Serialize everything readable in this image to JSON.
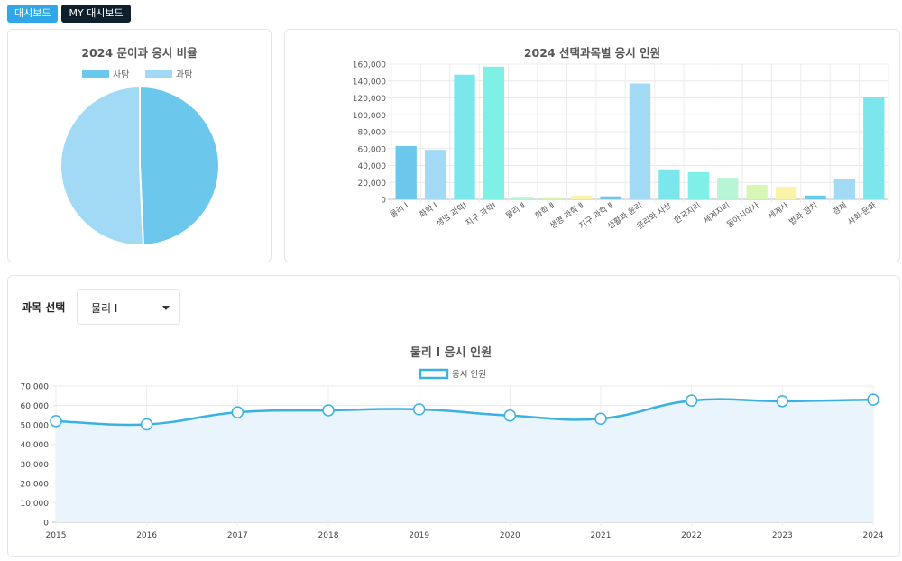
{
  "tabs": [
    {
      "label": "대시보드"
    },
    {
      "label": "MY 대시보드"
    }
  ],
  "colors": {
    "accent": "#2fa7e8",
    "line": "#3ab0e4",
    "line_fill": "#e9f4fc"
  },
  "selector": {
    "label": "과목 선택",
    "selected": "물리 I"
  },
  "chart_data": [
    {
      "type": "pie",
      "title": "2024 문이과 응시 비율",
      "legend": "top",
      "labels": [
        "사탐",
        "과탐"
      ],
      "values": [
        49.3,
        50.7
      ],
      "colors": [
        "#6cc7ec",
        "#a2d9f4"
      ]
    },
    {
      "type": "bar",
      "title": "2024 선택과목별 응시 인원",
      "categories": [
        "물리 Ⅰ",
        "화학 Ⅰ",
        "생명 과학Ⅰ",
        "지구 과학Ⅰ",
        "물리 Ⅱ",
        "화학 Ⅱ",
        "생명 과학 Ⅱ",
        "지구 과학 Ⅱ",
        "생활과 윤리",
        "윤리와 사상",
        "한국지리",
        "세계지리",
        "동아시아사",
        "세계사",
        "법과 정치",
        "경제",
        "사회·문화"
      ],
      "values": [
        63000,
        58500,
        147500,
        157000,
        3000,
        2500,
        4500,
        3500,
        137000,
        35500,
        32000,
        25500,
        17000,
        15000,
        4500,
        24000,
        121500
      ],
      "colors": [
        "#6cc7ec",
        "#a2d9f4",
        "#7be6ec",
        "#7ef0e6",
        "#b8f5d6",
        "#d6f7b6",
        "#faf4a8",
        "#6cc7ec",
        "#a2d9f4",
        "#7be6ec",
        "#7ef0e6",
        "#b8f5d6",
        "#d6f7b6",
        "#faf4a8",
        "#6cc7ec",
        "#a2d9f4",
        "#7be6ec"
      ],
      "ylim": [
        0,
        160000
      ],
      "yticks": [
        0,
        20000,
        40000,
        60000,
        80000,
        100000,
        120000,
        140000,
        160000
      ],
      "ytick_labels": [
        "0",
        "20,000",
        "40,000",
        "60,000",
        "80,000",
        "100,000",
        "120,000",
        "140,000",
        "160,000"
      ],
      "grid": true
    },
    {
      "type": "line",
      "title": "물리 Ⅰ 응시 인원",
      "legend": "top",
      "series": [
        {
          "name": "응시 인원",
          "x": [
            "2015",
            "2016",
            "2017",
            "2018",
            "2019",
            "2020",
            "2021",
            "2022",
            "2023",
            "2024"
          ],
          "values": [
            52000,
            50300,
            56500,
            57500,
            58000,
            54800,
            53200,
            62500,
            62200,
            63000
          ]
        }
      ],
      "ylim": [
        0,
        70000
      ],
      "yticks": [
        0,
        10000,
        20000,
        30000,
        40000,
        50000,
        60000,
        70000
      ],
      "ytick_labels": [
        "0",
        "10,000",
        "20,000",
        "30,000",
        "40,000",
        "50,000",
        "60,000",
        "70,000"
      ],
      "grid": true
    }
  ]
}
